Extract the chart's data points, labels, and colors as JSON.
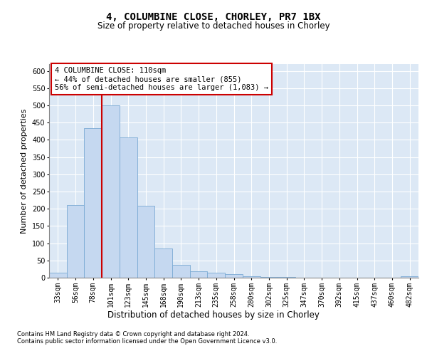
{
  "title": "4, COLUMBINE CLOSE, CHORLEY, PR7 1BX",
  "subtitle": "Size of property relative to detached houses in Chorley",
  "xlabel": "Distribution of detached houses by size in Chorley",
  "ylabel": "Number of detached properties",
  "footer1": "Contains HM Land Registry data © Crown copyright and database right 2024.",
  "footer2": "Contains public sector information licensed under the Open Government Licence v3.0.",
  "annotation_title": "4 COLUMBINE CLOSE: 110sqm",
  "annotation_line2": "← 44% of detached houses are smaller (855)",
  "annotation_line3": "56% of semi-detached houses are larger (1,083) →",
  "bar_color": "#c5d8f0",
  "bar_edge_color": "#7aaad4",
  "reference_line_color": "#cc0000",
  "annotation_box_edgecolor": "#cc0000",
  "background_color": "#dce8f5",
  "categories": [
    "33sqm",
    "56sqm",
    "78sqm",
    "101sqm",
    "123sqm",
    "145sqm",
    "168sqm",
    "190sqm",
    "213sqm",
    "235sqm",
    "258sqm",
    "280sqm",
    "302sqm",
    "325sqm",
    "347sqm",
    "370sqm",
    "392sqm",
    "415sqm",
    "437sqm",
    "460sqm",
    "482sqm"
  ],
  "values": [
    15,
    210,
    435,
    500,
    408,
    208,
    85,
    37,
    18,
    15,
    10,
    5,
    3,
    2,
    1,
    1,
    0,
    0,
    0,
    0,
    5
  ],
  "ylim": [
    0,
    620
  ],
  "yticks": [
    0,
    50,
    100,
    150,
    200,
    250,
    300,
    350,
    400,
    450,
    500,
    550,
    600
  ],
  "reference_bar_index": 3,
  "title_fontsize": 10,
  "subtitle_fontsize": 8.5,
  "ylabel_fontsize": 8,
  "xlabel_fontsize": 8.5,
  "tick_fontsize": 7,
  "annotation_fontsize": 7.5,
  "footer_fontsize": 6
}
